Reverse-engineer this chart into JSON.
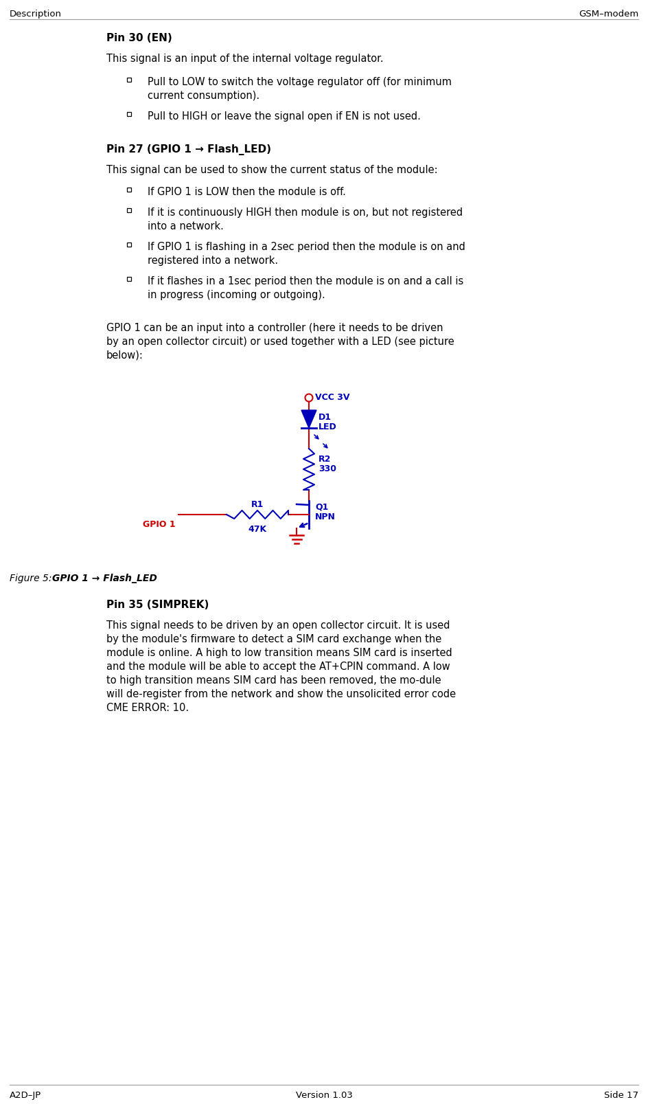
{
  "header_left": "Description",
  "header_right": "GSM–modem",
  "footer_left": "A2D–JP",
  "footer_center": "Version 1.03",
  "footer_right": "Side 17",
  "bg_color": "#ffffff",
  "text_color": "#000000",
  "blue_color": "#0000bb",
  "red_color": "#cc0000",
  "pin30_title": "Pin 30 (EN)",
  "pin30_desc": "This signal is an input of the internal voltage regulator.",
  "pin30_bullets": [
    [
      "Pull to LOW to switch the voltage regulator off (for minimum",
      "current consumption)."
    ],
    [
      "Pull to HIGH or leave the signal open if EN is not used."
    ]
  ],
  "pin27_title": "Pin 27 (GPIO 1 → Flash_LED)",
  "pin27_desc": "This signal can be used to show the current status of the module:",
  "pin27_bullets": [
    [
      "If GPIO 1 is LOW then the module is off."
    ],
    [
      "If it is continuously HIGH then module is on, but not registered",
      "into a network."
    ],
    [
      "If GPIO 1 is flashing in a 2sec period then the module is on and",
      "registered into a network."
    ],
    [
      "If it flashes in a 1sec period then the module is on and a call is",
      "in progress (incoming or outgoing)."
    ]
  ],
  "pin27_extra": [
    "GPIO 1 can be an input into a controller (here it needs to be driven",
    "by an open collector circuit) or used together with a LED (see picture",
    "below):"
  ],
  "figure_caption_prefix": "Figure 5:  ",
  "figure_caption_bold": "GPIO 1 → Flash_LED",
  "pin35_title": "Pin 35 (SIMPREK)",
  "pin35_lines": [
    "This signal needs to be driven by an open collector circuit. It is used",
    "by the module's firmware to detect a SIM card exchange when the",
    "module is online. A high to low transition means SIM card is inserted",
    "and the module will be able to accept the AT+CPIN command. A low",
    "to high transition means SIM card has been removed, the mo-dule",
    "will de-register from the network and show the unsolicited error code",
    "CME ERROR: 10."
  ]
}
